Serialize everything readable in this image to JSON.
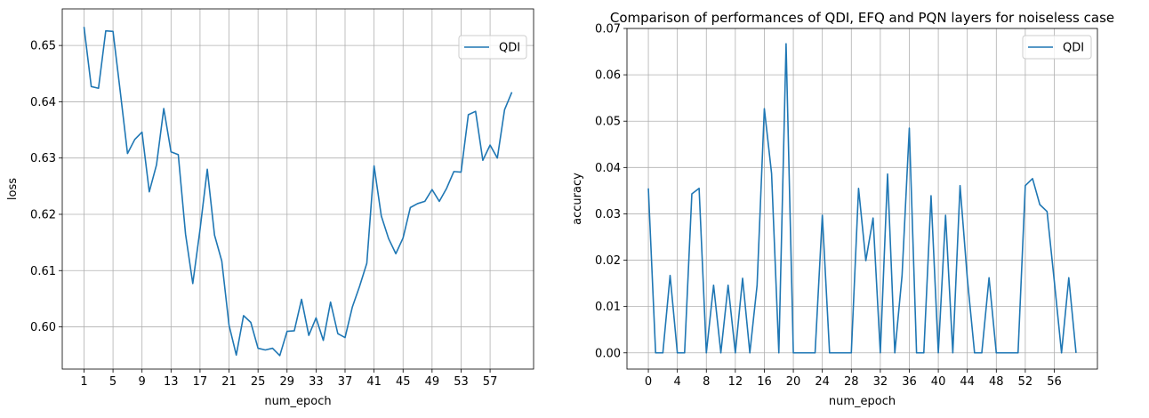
{
  "chart_data": [
    {
      "type": "line",
      "title": "",
      "xlabel": "num_epoch",
      "ylabel": "loss",
      "xlim": [
        -2.0,
        63.0
      ],
      "ylim": [
        0.5925,
        0.6565
      ],
      "xticks": [
        1,
        5,
        9,
        13,
        17,
        21,
        25,
        29,
        33,
        37,
        41,
        45,
        49,
        53,
        57
      ],
      "yticks": [
        0.6,
        0.61,
        0.62,
        0.63,
        0.64,
        0.65
      ],
      "ytick_labels": [
        "0.60",
        "0.61",
        "0.62",
        "0.63",
        "0.64",
        "0.65"
      ],
      "grid": true,
      "legend": "upper right",
      "series": [
        {
          "name": "QDI",
          "color": "#1f77b4",
          "x": [
            1,
            2,
            3,
            4,
            5,
            6,
            7,
            8,
            9,
            10,
            11,
            12,
            13,
            14,
            15,
            16,
            17,
            18,
            19,
            20,
            21,
            22,
            23,
            24,
            25,
            26,
            27,
            28,
            29,
            30,
            31,
            32,
            33,
            34,
            35,
            36,
            37,
            38,
            39,
            40,
            41,
            42,
            43,
            44,
            45,
            46,
            47,
            48,
            49,
            50,
            51,
            52,
            53,
            54,
            55,
            56,
            57,
            58,
            59,
            60
          ],
          "values": [
            0.6533,
            0.6427,
            0.6424,
            0.6526,
            0.6525,
            0.6418,
            0.6308,
            0.6333,
            0.6346,
            0.624,
            0.6288,
            0.6388,
            0.6311,
            0.6306,
            0.6165,
            0.6077,
            0.6173,
            0.628,
            0.6163,
            0.6117,
            0.6003,
            0.595,
            0.602,
            0.6008,
            0.5962,
            0.5959,
            0.5962,
            0.5949,
            0.5992,
            0.5993,
            0.6049,
            0.5985,
            0.6016,
            0.5976,
            0.6044,
            0.5988,
            0.5981,
            0.6035,
            0.6072,
            0.6113,
            0.6286,
            0.6197,
            0.6157,
            0.613,
            0.6158,
            0.6212,
            0.6219,
            0.6223,
            0.6244,
            0.6223,
            0.6246,
            0.6276,
            0.6275,
            0.6377,
            0.6383,
            0.6296,
            0.6323,
            0.63,
            0.6386,
            0.6417
          ]
        }
      ]
    },
    {
      "type": "line",
      "title": "Comparison of performances of QDI, EFQ and PQN layers for noiseless case",
      "xlabel": "num_epoch",
      "ylabel": "accuracy",
      "xlim": [
        -2.95,
        61.95
      ],
      "ylim": [
        -0.0035,
        0.07
      ],
      "xticks": [
        0,
        4,
        8,
        12,
        16,
        20,
        24,
        28,
        32,
        36,
        40,
        44,
        48,
        52,
        56
      ],
      "yticks": [
        0.0,
        0.01,
        0.02,
        0.03,
        0.04,
        0.05,
        0.06,
        0.07
      ],
      "ytick_labels": [
        "0.00",
        "0.01",
        "0.02",
        "0.03",
        "0.04",
        "0.05",
        "0.06",
        "0.07"
      ],
      "grid": true,
      "legend": "upper right",
      "series": [
        {
          "name": "QDI",
          "color": "#1f77b4",
          "x": [
            0,
            1,
            2,
            3,
            4,
            5,
            6,
            7,
            8,
            9,
            10,
            11,
            12,
            13,
            14,
            15,
            16,
            17,
            18,
            19,
            20,
            21,
            22,
            23,
            24,
            25,
            26,
            27,
            28,
            29,
            30,
            31,
            32,
            33,
            34,
            35,
            36,
            37,
            38,
            39,
            40,
            41,
            42,
            43,
            44,
            45,
            46,
            47,
            48,
            49,
            50,
            51,
            52,
            53,
            54,
            55,
            56,
            57,
            58,
            59
          ],
          "values": [
            0.0355,
            0.0,
            0.0,
            0.0167,
            0.0,
            0.0,
            0.0343,
            0.0355,
            0.0,
            0.0146,
            0.0,
            0.0146,
            0.0,
            0.0161,
            0.0,
            0.0146,
            0.0527,
            0.0387,
            0.0,
            0.0667,
            0.0,
            0.0,
            0.0,
            0.0,
            0.0297,
            0.0,
            0.0,
            0.0,
            0.0,
            0.0355,
            0.0199,
            0.0291,
            0.0,
            0.0386,
            0.0,
            0.0167,
            0.0485,
            0.0,
            0.0,
            0.0339,
            0.0,
            0.0297,
            0.0,
            0.0361,
            0.0161,
            0.0,
            0.0,
            0.0162,
            0.0,
            0.0,
            0.0,
            0.0,
            0.0361,
            0.0376,
            0.032,
            0.0305,
            0.0155,
            0.0,
            0.0162,
            0.0
          ]
        }
      ]
    }
  ]
}
